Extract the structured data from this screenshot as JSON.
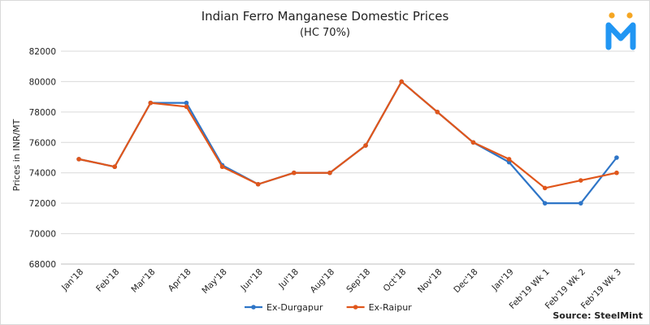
{
  "brand": {
    "logo_colors": {
      "dots": "#f5a623",
      "letter": "#2196f3"
    }
  },
  "source": "Source: SteelMint",
  "chart_data": {
    "type": "line",
    "title": "Indian Ferro Manganese Domestic Prices",
    "subtitle": "(HC 70%)",
    "xlabel": "",
    "ylabel": "Prices in INR/MT",
    "ylim": [
      68000,
      82000
    ],
    "yticks": [
      68000,
      70000,
      72000,
      74000,
      76000,
      78000,
      80000,
      82000
    ],
    "grid": true,
    "legend_position": "bottom",
    "categories": [
      "Jan'18",
      "Feb'18",
      "Mar'18",
      "Apr'18",
      "May'18",
      "Jun'18",
      "Jul'18",
      "Aug'18",
      "Sep'18",
      "Oct'18",
      "Nov'18",
      "Dec'18",
      "Jan'19",
      "Feb'19 Wk 1",
      "Feb'19 Wk 2",
      "Feb'19 Wk 3"
    ],
    "series": [
      {
        "name": "Ex-Durgapur",
        "color": "#2e75c7",
        "values": [
          74900,
          74400,
          78600,
          78600,
          74500,
          73250,
          74000,
          74000,
          75800,
          80000,
          78000,
          76000,
          74700,
          72000,
          72000,
          75000
        ]
      },
      {
        "name": "Ex-Raipur",
        "color": "#e0561b",
        "values": [
          74900,
          74400,
          78600,
          78350,
          74400,
          73250,
          74000,
          74000,
          75800,
          80000,
          78000,
          76000,
          74900,
          73000,
          73500,
          74000
        ]
      }
    ]
  }
}
